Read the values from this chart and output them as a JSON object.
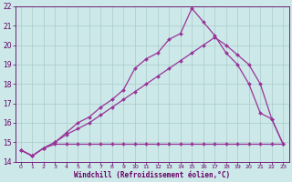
{
  "bg_color": "#cce8e8",
  "grid_color": "#aacccc",
  "line_color": "#993399",
  "marker": "D",
  "markersize": 2.0,
  "linewidth": 0.9,
  "xlabel": "Windchill (Refroidissement éolien,°C)",
  "xlabel_color": "#660066",
  "tick_color": "#660066",
  "spine_color": "#660066",
  "xlim_min": -0.5,
  "xlim_max": 23.5,
  "ylim_min": 14.0,
  "ylim_max": 22.0,
  "yticks": [
    14,
    15,
    16,
    17,
    18,
    19,
    20,
    21,
    22
  ],
  "xticks": [
    0,
    1,
    2,
    3,
    4,
    5,
    6,
    7,
    8,
    9,
    10,
    11,
    12,
    13,
    14,
    15,
    16,
    17,
    18,
    19,
    20,
    21,
    22,
    23
  ],
  "series1_x": [
    0,
    1,
    2,
    3,
    4,
    5,
    6,
    7,
    8,
    9,
    10,
    11,
    12,
    13,
    14,
    15,
    16,
    17,
    18,
    19,
    20,
    21,
    22,
    23
  ],
  "series1_y": [
    14.6,
    14.3,
    14.7,
    14.9,
    14.9,
    14.9,
    14.9,
    14.9,
    14.9,
    14.9,
    14.9,
    14.9,
    14.9,
    14.9,
    14.9,
    14.9,
    14.9,
    14.9,
    14.9,
    14.9,
    14.9,
    14.9,
    14.9,
    14.9
  ],
  "series2_x": [
    0,
    1,
    2,
    3,
    4,
    5,
    6,
    7,
    8,
    9,
    10,
    11,
    12,
    13,
    14,
    15,
    16,
    17,
    18,
    19,
    20,
    21,
    22,
    23
  ],
  "series2_y": [
    14.6,
    14.3,
    14.7,
    15.0,
    15.5,
    16.0,
    16.3,
    16.8,
    17.2,
    17.7,
    18.8,
    19.3,
    19.6,
    20.3,
    20.6,
    21.9,
    21.2,
    20.5,
    19.6,
    19.0,
    18.0,
    16.5,
    16.2,
    14.9
  ],
  "series3_x": [
    0,
    1,
    2,
    3,
    4,
    5,
    6,
    7,
    8,
    9,
    10,
    11,
    12,
    13,
    14,
    15,
    16,
    17,
    18,
    19,
    20,
    21,
    22,
    23
  ],
  "series3_y": [
    14.6,
    14.3,
    14.7,
    15.0,
    15.4,
    15.7,
    16.0,
    16.4,
    16.8,
    17.2,
    17.6,
    18.0,
    18.4,
    18.8,
    19.2,
    19.6,
    20.0,
    20.4,
    20.0,
    19.5,
    19.0,
    18.0,
    16.2,
    14.9
  ]
}
